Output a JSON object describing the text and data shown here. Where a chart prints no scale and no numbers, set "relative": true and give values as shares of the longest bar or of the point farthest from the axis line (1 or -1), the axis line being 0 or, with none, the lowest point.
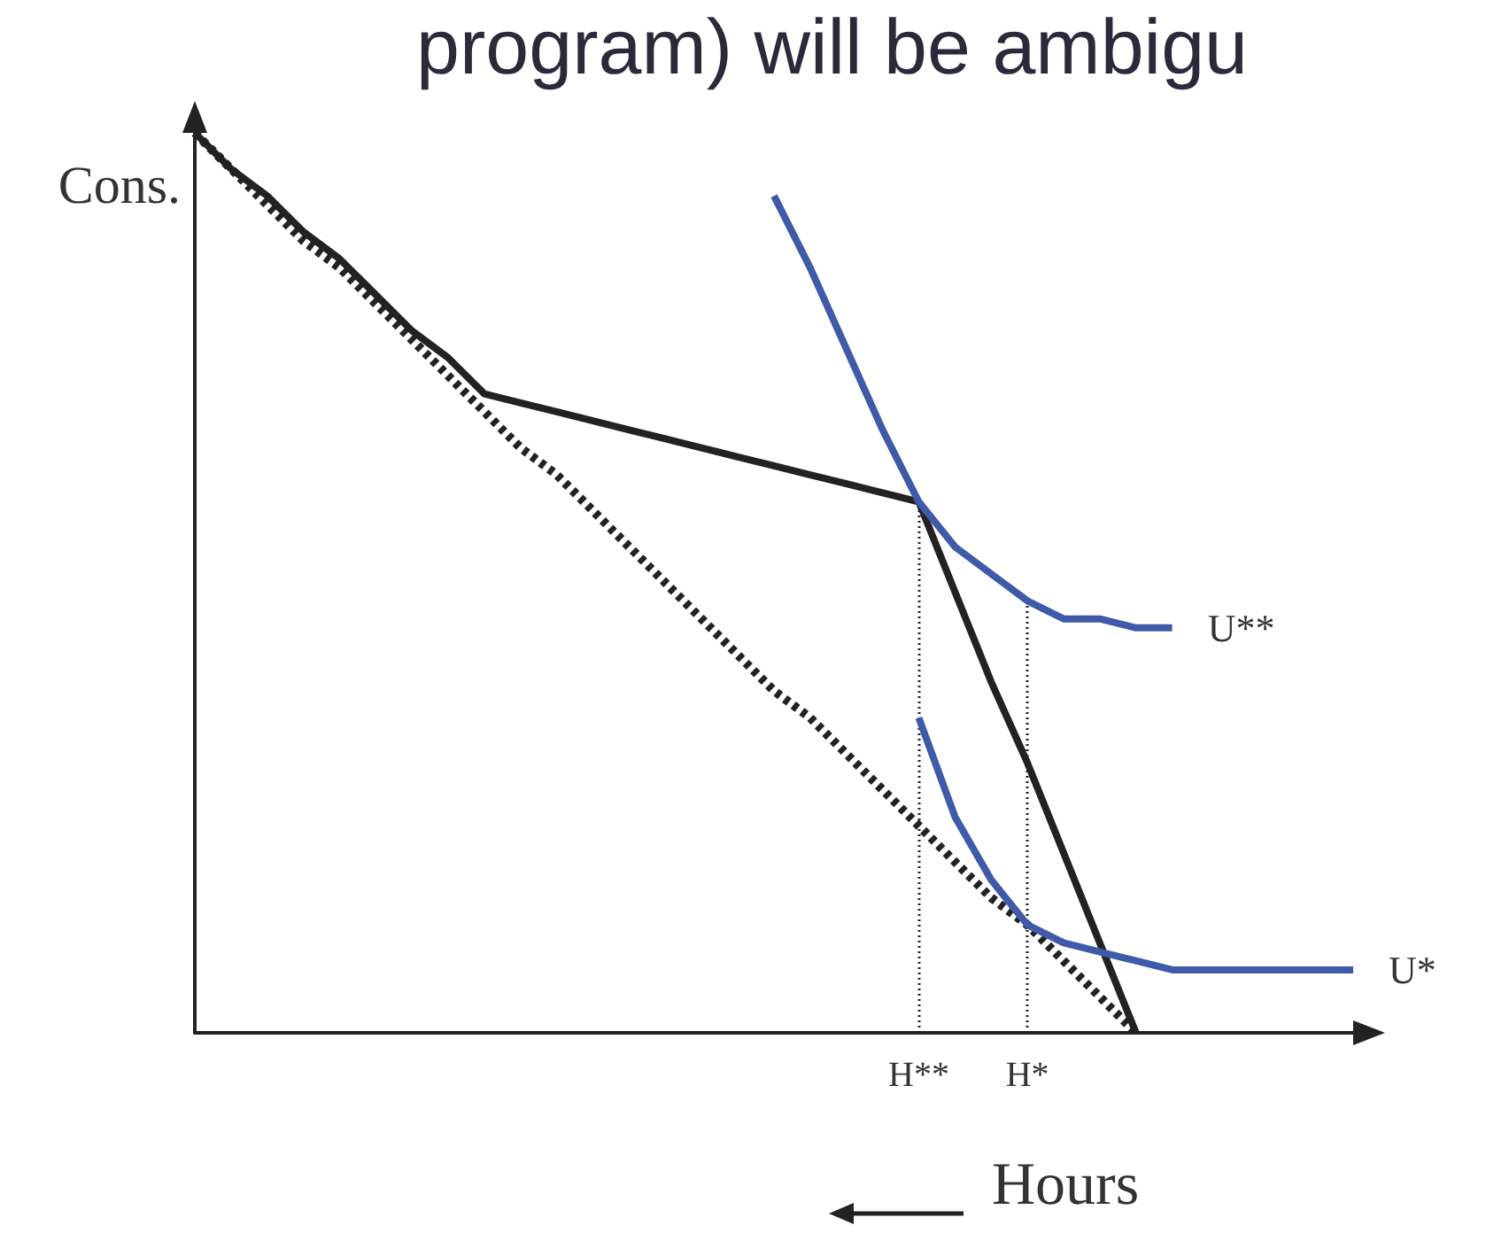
{
  "chart_data": {
    "type": "line",
    "title": "program) will be ambigu",
    "ylabel": "Cons.",
    "xlabel": "Hours",
    "relative": true,
    "marker": "none",
    "categories": [
      null,
      null,
      null,
      null,
      null,
      null,
      null,
      null,
      null,
      null,
      null,
      null,
      null,
      null,
      null,
      null,
      null,
      null,
      null,
      null,
      "H**",
      null,
      null,
      "H*",
      null,
      null,
      null,
      null,
      null,
      null,
      null,
      null,
      null
    ],
    "series": [
      {
        "color": "#222222",
        "line_style": "solid",
        "values": [
          1.0,
          0.96,
          0.93,
          0.89,
          0.86,
          0.82,
          0.78,
          0.75,
          0.71,
          0.7,
          0.69,
          0.68,
          0.67,
          0.66,
          0.65,
          0.64,
          0.63,
          0.62,
          0.61,
          0.6,
          0.59,
          0.49,
          0.39,
          0.3,
          0.2,
          0.1,
          0.0,
          null,
          null,
          null,
          null,
          null,
          null
        ]
      },
      {
        "color": "#222222",
        "line_style": "dotted",
        "values": [
          1.0,
          0.96,
          0.92,
          0.88,
          0.85,
          0.81,
          0.77,
          0.73,
          0.69,
          0.65,
          0.62,
          0.58,
          0.54,
          0.5,
          0.46,
          0.42,
          0.38,
          0.35,
          0.31,
          0.27,
          0.23,
          0.19,
          0.15,
          0.12,
          0.08,
          0.04,
          0.0,
          null,
          null,
          null,
          null,
          null,
          null
        ]
      },
      {
        "name": "U**",
        "color": "#3f5aa8",
        "line_style": "solid",
        "values": [
          null,
          null,
          null,
          null,
          null,
          null,
          null,
          null,
          null,
          null,
          null,
          null,
          null,
          null,
          null,
          null,
          0.93,
          0.85,
          0.76,
          0.67,
          0.59,
          0.54,
          0.51,
          0.48,
          0.46,
          0.46,
          0.45,
          0.45,
          null,
          null,
          null,
          null,
          null
        ]
      },
      {
        "name": "U*",
        "color": "#3f5aa8",
        "line_style": "solid",
        "values": [
          null,
          null,
          null,
          null,
          null,
          null,
          null,
          null,
          null,
          null,
          null,
          null,
          null,
          null,
          null,
          null,
          null,
          null,
          null,
          null,
          0.35,
          0.24,
          0.17,
          0.12,
          0.1,
          0.09,
          0.08,
          0.07,
          0.07,
          0.07,
          0.07,
          0.07,
          0.07
        ]
      }
    ],
    "ref_lines": [
      {
        "axis": "x",
        "value": "H**",
        "line_style": "dotted",
        "color": "#222222"
      },
      {
        "axis": "x",
        "value": "H*",
        "line_style": "dotted",
        "color": "#222222"
      }
    ]
  }
}
